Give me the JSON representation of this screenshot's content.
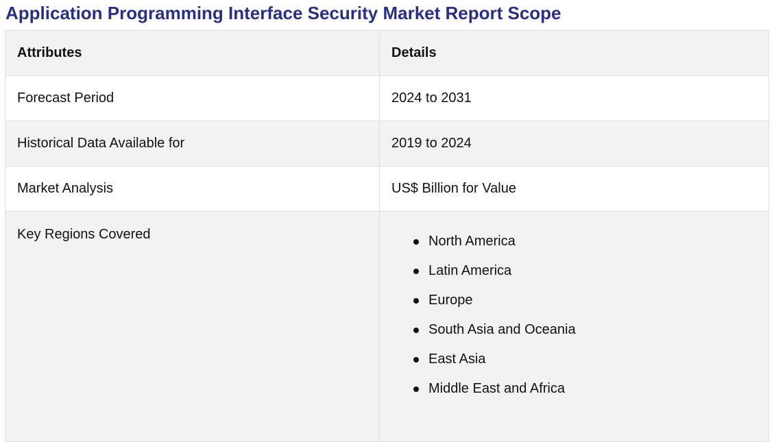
{
  "title": "Application Programming Interface Security Market Report Scope",
  "table": {
    "headers": [
      "Attributes",
      "Details"
    ],
    "rows": [
      {
        "attribute": "Forecast Period",
        "detail": "2024 to 2031"
      },
      {
        "attribute": "Historical Data Available for",
        "detail": "2019 to 2024"
      },
      {
        "attribute": "Market Analysis",
        "detail": "US$ Billion for Value"
      }
    ],
    "regions_label": "Key Regions Covered",
    "regions": [
      "North America",
      "Latin America",
      "Europe",
      "South Asia and Oceania",
      "East Asia",
      "Middle East and Africa"
    ]
  },
  "colors": {
    "title": "#2a2f7f",
    "row_gray": "#f2f2f2",
    "row_white": "#ffffff",
    "border": "#dedede"
  }
}
